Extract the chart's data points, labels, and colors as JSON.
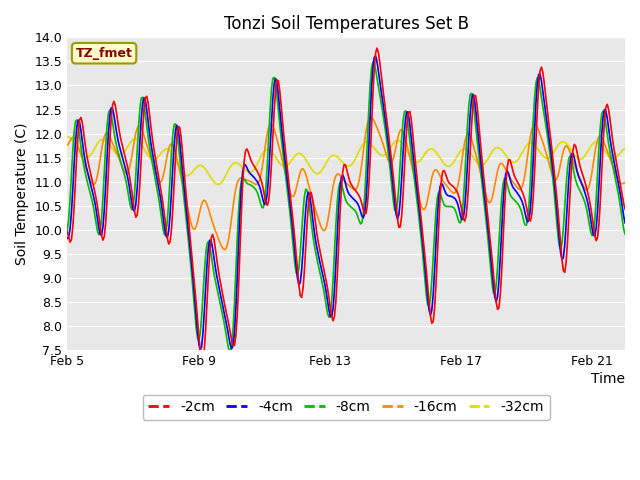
{
  "title": "Tonzi Soil Temperatures Set B",
  "xlabel": "Time",
  "ylabel": "Soil Temperature (C)",
  "ylim": [
    7.5,
    14.0
  ],
  "yticks": [
    7.5,
    8.0,
    8.5,
    9.0,
    9.5,
    10.0,
    10.5,
    11.0,
    11.5,
    12.0,
    12.5,
    13.0,
    13.5,
    14.0
  ],
  "bg_color": "#e8e8e8",
  "line_colors": {
    "-2cm": "#ff0000",
    "-4cm": "#0000ff",
    "-8cm": "#00bb00",
    "-16cm": "#ff8800",
    "-32cm": "#dddd00"
  },
  "legend_label": "TZ_fmet",
  "legend_bg": "#ffffcc",
  "legend_border": "#999900",
  "x_tick_labels": [
    "Feb 5",
    "Feb 9",
    "Feb 13",
    "Feb 17",
    "Feb 21"
  ],
  "x_tick_positions": [
    0,
    4,
    8,
    12,
    16
  ],
  "n_days": 17,
  "pts_per_day": 24,
  "title_fontsize": 12,
  "label_fontsize": 10,
  "tick_fontsize": 9,
  "legend_fontsize": 10
}
